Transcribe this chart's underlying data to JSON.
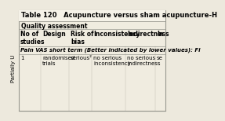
{
  "title": "Table 120   Acupuncture versus sham acupuncture-H",
  "section_header": "Quality assessment",
  "col_headers": [
    "No of\nstudies",
    "Design",
    "Risk of\nbias",
    "Inconsistency",
    "Indirectness",
    "In"
  ],
  "row_subheader": "Pain VAS short term (Better indicated by lower values): Fi",
  "row_data": [
    "1",
    "randomised\ntrials",
    "serious²",
    "no serious\ninconsistency",
    "no serious\nindirectness",
    "se"
  ],
  "side_text": "Partially U",
  "bg_color": "#ede9dd",
  "table_bg": "#f0ece0",
  "border_color": "#999990",
  "font_size": 5.5,
  "title_font_size": 6.0
}
